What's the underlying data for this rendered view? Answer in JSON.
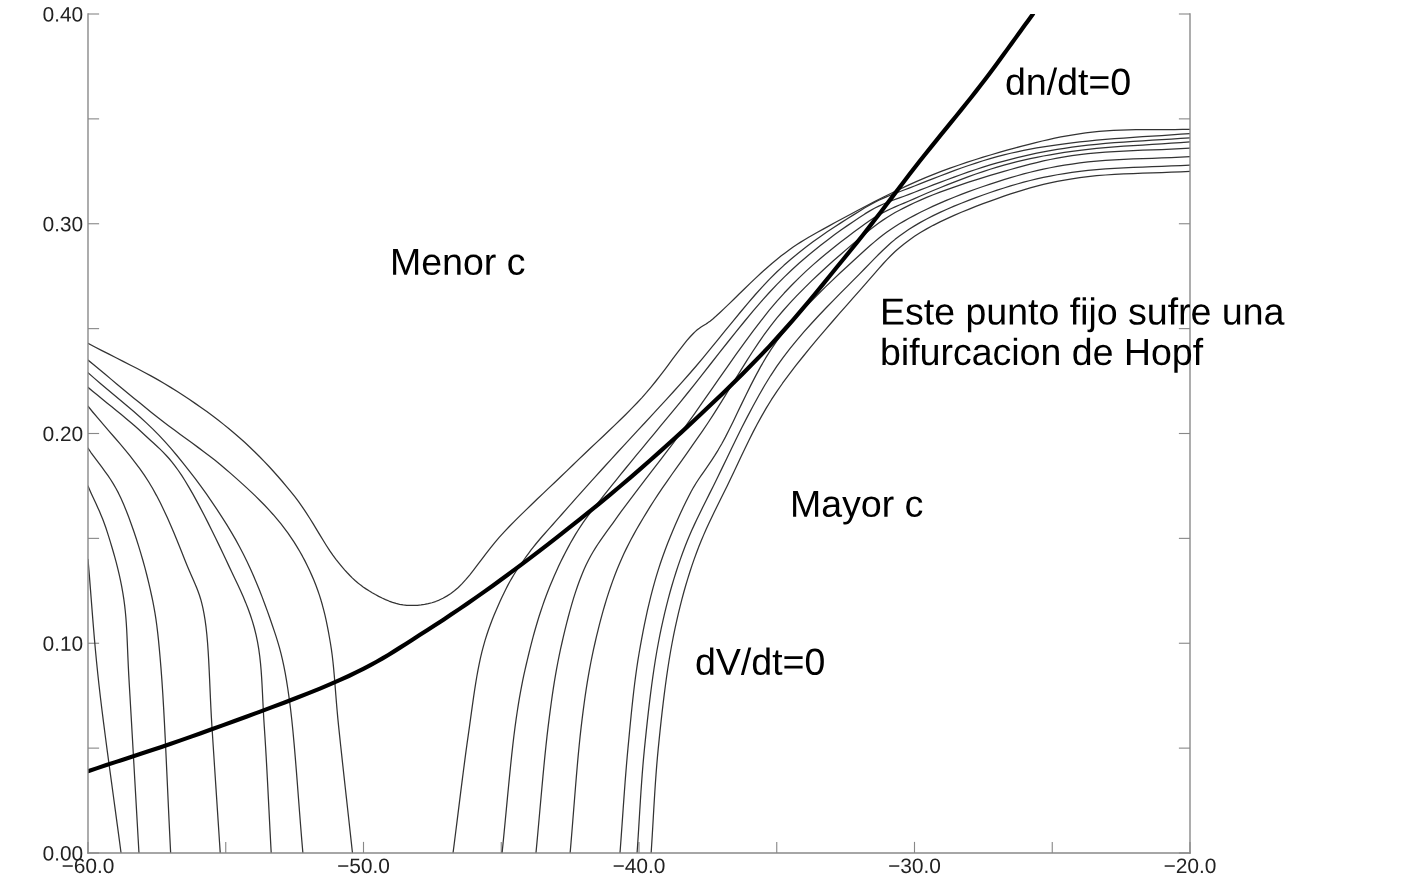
{
  "chart_data": {
    "type": "line",
    "xlim": [
      -60,
      -20
    ],
    "ylim": [
      0,
      0.4
    ],
    "xticks": [
      {
        "value": -60,
        "label": "−60.0"
      },
      {
        "value": -55,
        "label": null
      },
      {
        "value": -50,
        "label": "−50.0"
      },
      {
        "value": -45,
        "label": null
      },
      {
        "value": -40,
        "label": "−40.0"
      },
      {
        "value": -35,
        "label": null
      },
      {
        "value": -30,
        "label": "−30.0"
      },
      {
        "value": -25,
        "label": null
      },
      {
        "value": -20,
        "label": "−20.0"
      }
    ],
    "yticks": [
      {
        "value": 0,
        "label": "0.00"
      },
      {
        "value": 0.05,
        "label": null
      },
      {
        "value": 0.1,
        "label": "0.10"
      },
      {
        "value": 0.15,
        "label": null
      },
      {
        "value": 0.2,
        "label": "0.20"
      },
      {
        "value": 0.25,
        "label": null
      },
      {
        "value": 0.3,
        "label": "0.30"
      },
      {
        "value": 0.35,
        "label": null
      },
      {
        "value": 0.4,
        "label": "0.40"
      }
    ],
    "grid": false,
    "legend": false,
    "marker": "none",
    "series": [
      {
        "color": "#333333",
        "x": [
          -60,
          -57,
          -54.5,
          -52.5,
          -51,
          -49.8,
          -48.3,
          -46.7,
          -44.9,
          -42.4,
          -39.9,
          -38.15,
          -37.2,
          -35,
          -33.1,
          -29.6,
          -26.1,
          -23.3,
          -20
        ],
        "values": [
          0.243,
          0.222,
          0.198,
          0.17,
          0.14,
          0.125,
          0.118,
          0.125,
          0.153,
          0.185,
          0.217,
          0.246,
          0.256,
          0.283,
          0.299,
          0.322,
          0.337,
          0.344,
          0.345
        ]
      },
      {
        "color": "#333333",
        "x": [
          -60,
          -57.5,
          -55,
          -53,
          -51.8,
          -51.2,
          -50.9,
          -50.4,
          -48,
          -46.75,
          -46.2,
          -45.7,
          -44.9,
          -44,
          -42.9,
          -41.2,
          -38.2,
          -35,
          -32,
          -30,
          -27,
          -24,
          -20
        ],
        "values": [
          0.235,
          0.208,
          0.183,
          0.157,
          0.13,
          0.1,
          0.06,
          0,
          null,
          0,
          0.056,
          0.096,
          0.124,
          0.143,
          0.16,
          0.185,
          0.228,
          0.277,
          0.306,
          0.318,
          0.332,
          0.339,
          0.343
        ]
      },
      {
        "color": "#333333",
        "x": [
          -60,
          -57.2,
          -54.8,
          -53.4,
          -52.7,
          -52.2,
          -48,
          -44.97,
          -44.5,
          -44,
          -43.3,
          -42.3,
          -41,
          -38.5,
          -35,
          -32,
          -30,
          -27,
          -24,
          -20
        ],
        "values": [
          0.229,
          0.196,
          0.153,
          0.112,
          0.074,
          0,
          null,
          0,
          0.06,
          0.095,
          0.125,
          0.152,
          0.175,
          0.215,
          0.271,
          0.303,
          0.315,
          0.329,
          0.337,
          0.341
        ]
      },
      {
        "color": "#333333",
        "x": [
          -60,
          -58,
          -56.6,
          -55,
          -53.9,
          -53.6,
          -53.35,
          -48,
          -43.74,
          -43.3,
          -42.8,
          -42,
          -40.8,
          -38.5,
          -35,
          -32,
          -30,
          -27,
          -24,
          -20
        ],
        "values": [
          0.222,
          0.2,
          0.18,
          0.14,
          0.104,
          0.06,
          0,
          null,
          0,
          0.06,
          0.1,
          0.135,
          0.16,
          0.2,
          0.263,
          0.298,
          0.312,
          0.327,
          0.335,
          0.339
        ]
      },
      {
        "color": "#333333",
        "x": [
          -60,
          -57.8,
          -56.4,
          -55.75,
          -55.5,
          -55.2,
          -48,
          -42.5,
          -42.1,
          -41.6,
          -40.8,
          -39.6,
          -37.5,
          -35,
          -32,
          -30,
          -27,
          -24,
          -20
        ],
        "values": [
          0.213,
          0.177,
          0.137,
          0.111,
          0.06,
          0,
          null,
          0,
          0.06,
          0.1,
          0.135,
          0.165,
          0.205,
          0.255,
          0.293,
          0.31,
          0.324,
          0.333,
          0.336
        ]
      },
      {
        "color": "#333333",
        "x": [
          -60,
          -58.8,
          -57.8,
          -57.35,
          -57,
          -48,
          -40.69,
          -40.4,
          -40,
          -39.3,
          -38.2,
          -37,
          -35,
          -32,
          -30,
          -27,
          -24,
          -20
        ],
        "values": [
          0.193,
          0.169,
          0.129,
          0.088,
          0,
          null,
          0,
          0.05,
          0.095,
          0.135,
          0.17,
          0.195,
          0.244,
          0.285,
          0.304,
          0.32,
          0.329,
          0.332
        ]
      },
      {
        "color": "#333333",
        "x": [
          -60,
          -59.3,
          -58.7,
          -58.5,
          -58.15,
          -48,
          -40.07,
          -39.8,
          -39.3,
          -38.5,
          -37.3,
          -35,
          -32,
          -30,
          -27,
          -24,
          -20
        ],
        "values": [
          0.175,
          0.153,
          0.121,
          0.08,
          0,
          null,
          0,
          0.05,
          0.1,
          0.14,
          0.175,
          0.232,
          0.276,
          0.299,
          0.316,
          0.325,
          0.328
        ]
      },
      {
        "color": "#333333",
        "x": [
          -60,
          -59.6,
          -58.8,
          -48,
          -39.56,
          -39.3,
          -38.8,
          -38,
          -36.8,
          -35,
          -32,
          -30,
          -27,
          -24,
          -20
        ],
        "values": [
          0.14,
          0.08,
          0,
          null,
          0,
          0.05,
          0.1,
          0.14,
          0.175,
          0.22,
          0.268,
          0.294,
          0.312,
          0.322,
          0.325
        ]
      },
      {
        "color": "#000000",
        "x": [
          -60,
          -55.93,
          -50.85,
          -47.95,
          -44.32,
          -39.96,
          -35.6,
          -32.34,
          -29.8,
          -27.6,
          -25.7
        ],
        "values": [
          0.039,
          0.057,
          0.0825,
          0.104,
          0.137,
          0.183,
          0.237,
          0.287,
          0.33,
          0.366,
          0.4
        ]
      }
    ],
    "annotations": [
      "dn/dt=0",
      "Menor c",
      "Este punto fijo sufre una\nbifurcacion de Hopf",
      "Mayor c",
      "dV/dt=0"
    ]
  }
}
